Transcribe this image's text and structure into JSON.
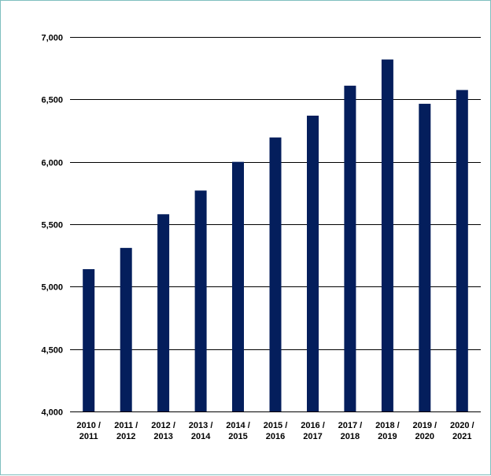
{
  "chart_data": {
    "type": "bar",
    "categories": [
      [
        "2010 /",
        "2011"
      ],
      [
        "2011 /",
        "2012"
      ],
      [
        "2012 /",
        "2013"
      ],
      [
        "2013 /",
        "2014"
      ],
      [
        "2014 /",
        "2015"
      ],
      [
        "2015 /",
        "2016"
      ],
      [
        "2016 /",
        "2017"
      ],
      [
        "2017 /",
        "2018"
      ],
      [
        "2018 /",
        "2019"
      ],
      [
        "2019 /",
        "2020"
      ],
      [
        "2020 /",
        "2021"
      ]
    ],
    "values": [
      5140,
      5310,
      5580,
      5770,
      6000,
      6195,
      6370,
      6610,
      6820,
      6465,
      6575
    ],
    "ylim": [
      4000,
      7000
    ],
    "yticks": [
      4000,
      4500,
      5000,
      5500,
      6000,
      6500,
      7000
    ],
    "ytick_labels": [
      "4,000",
      "4,500",
      "5,000",
      "5,500",
      "6,000",
      "6,500",
      "7,000"
    ],
    "grid": true,
    "bar_color": "#041e5c",
    "grid_color": "#000000"
  }
}
